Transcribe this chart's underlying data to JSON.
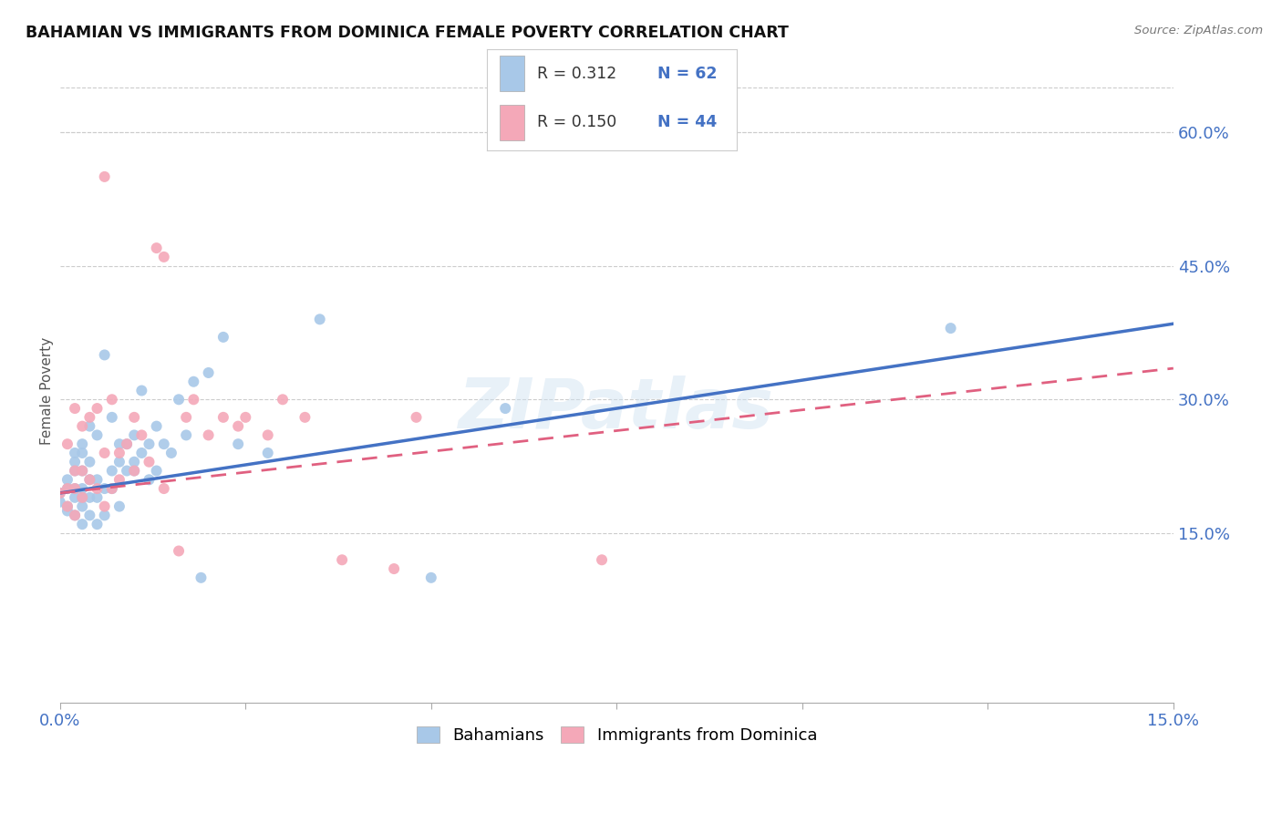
{
  "title": "BAHAMIAN VS IMMIGRANTS FROM DOMINICA FEMALE POVERTY CORRELATION CHART",
  "source": "Source: ZipAtlas.com",
  "ylabel": "Female Poverty",
  "xlim": [
    0.0,
    0.15
  ],
  "ylim": [
    -0.04,
    0.66
  ],
  "yticks_right": [
    0.15,
    0.3,
    0.45,
    0.6
  ],
  "ytickslabels_right": [
    "15.0%",
    "30.0%",
    "45.0%",
    "60.0%"
  ],
  "blue_color": "#a8c8e8",
  "pink_color": "#f4a8b8",
  "blue_line_color": "#4472C4",
  "pink_line_color": "#e06080",
  "watermark": "ZIPatlas",
  "bahamians_x": [
    0.0,
    0.0,
    0.001,
    0.001,
    0.001,
    0.001,
    0.002,
    0.002,
    0.002,
    0.002,
    0.002,
    0.002,
    0.003,
    0.003,
    0.003,
    0.003,
    0.003,
    0.003,
    0.003,
    0.004,
    0.004,
    0.004,
    0.004,
    0.004,
    0.005,
    0.005,
    0.005,
    0.005,
    0.006,
    0.006,
    0.006,
    0.007,
    0.007,
    0.007,
    0.008,
    0.008,
    0.008,
    0.009,
    0.009,
    0.01,
    0.01,
    0.01,
    0.011,
    0.011,
    0.012,
    0.012,
    0.013,
    0.013,
    0.014,
    0.015,
    0.016,
    0.017,
    0.018,
    0.019,
    0.02,
    0.022,
    0.024,
    0.028,
    0.035,
    0.05,
    0.06,
    0.12
  ],
  "bahamians_y": [
    0.195,
    0.185,
    0.18,
    0.2,
    0.21,
    0.175,
    0.17,
    0.19,
    0.2,
    0.22,
    0.23,
    0.24,
    0.16,
    0.18,
    0.19,
    0.2,
    0.22,
    0.24,
    0.25,
    0.17,
    0.19,
    0.21,
    0.23,
    0.27,
    0.16,
    0.19,
    0.21,
    0.26,
    0.17,
    0.2,
    0.35,
    0.2,
    0.22,
    0.28,
    0.18,
    0.23,
    0.25,
    0.22,
    0.25,
    0.22,
    0.23,
    0.26,
    0.24,
    0.31,
    0.21,
    0.25,
    0.22,
    0.27,
    0.25,
    0.24,
    0.3,
    0.26,
    0.32,
    0.1,
    0.33,
    0.37,
    0.25,
    0.24,
    0.39,
    0.1,
    0.29,
    0.38
  ],
  "dominica_x": [
    0.0,
    0.001,
    0.001,
    0.001,
    0.002,
    0.002,
    0.002,
    0.002,
    0.003,
    0.003,
    0.003,
    0.004,
    0.004,
    0.005,
    0.005,
    0.006,
    0.006,
    0.006,
    0.007,
    0.007,
    0.008,
    0.008,
    0.009,
    0.01,
    0.01,
    0.011,
    0.012,
    0.013,
    0.014,
    0.014,
    0.016,
    0.017,
    0.018,
    0.02,
    0.022,
    0.024,
    0.025,
    0.028,
    0.03,
    0.033,
    0.038,
    0.045,
    0.048,
    0.073
  ],
  "dominica_y": [
    0.195,
    0.18,
    0.2,
    0.25,
    0.17,
    0.2,
    0.22,
    0.29,
    0.19,
    0.22,
    0.27,
    0.21,
    0.28,
    0.2,
    0.29,
    0.18,
    0.24,
    0.55,
    0.2,
    0.3,
    0.21,
    0.24,
    0.25,
    0.22,
    0.28,
    0.26,
    0.23,
    0.47,
    0.46,
    0.2,
    0.13,
    0.28,
    0.3,
    0.26,
    0.28,
    0.27,
    0.28,
    0.26,
    0.3,
    0.28,
    0.12,
    0.11,
    0.28,
    0.12
  ],
  "blue_line_x0": 0.0,
  "blue_line_y0": 0.195,
  "blue_line_x1": 0.15,
  "blue_line_y1": 0.385,
  "pink_line_x0": 0.0,
  "pink_line_y0": 0.195,
  "pink_line_x1": 0.15,
  "pink_line_y1": 0.335
}
